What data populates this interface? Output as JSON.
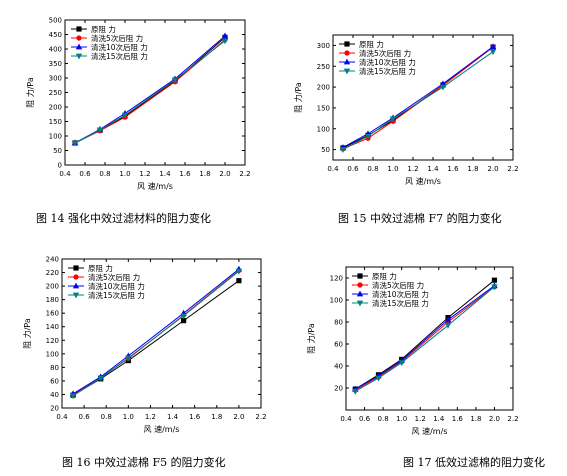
{
  "figures": [
    {
      "caption": "图 14 强化中效过滤材料的阻力变化"
    },
    {
      "caption": "图 15 中效过滤棉 F7 的阻力变化"
    },
    {
      "caption": "图 16 中效过滤棉 F5 的阻力变化"
    },
    {
      "caption": "图 17 低效过滤棉的阻力变化"
    }
  ],
  "chart_data": [
    {
      "type": "line",
      "xlabel": "风 速/m/s",
      "ylabel": "阻 力/Pa",
      "xlim": [
        0.4,
        2.2
      ],
      "ylim": [
        0,
        500
      ],
      "xticks": [
        "0.4",
        "0.6",
        "0.8",
        "1.0",
        "1.2",
        "1.4",
        "1.6",
        "1.8",
        "2.0",
        "2.2"
      ],
      "yticks": [
        "0",
        "50",
        "100",
        "150",
        "200",
        "250",
        "300",
        "350",
        "400",
        "450",
        "500"
      ],
      "legend": "top-left",
      "x": [
        0.5,
        0.75,
        1.0,
        1.5,
        2.0
      ],
      "series": [
        {
          "name": "原阻 力",
          "color": "#000000",
          "marker": "square",
          "values": [
            76,
            120,
            168,
            290,
            440
          ]
        },
        {
          "name": "清洗5次后阻 力",
          "color": "#ff0000",
          "marker": "circle",
          "values": [
            76,
            118,
            165,
            287,
            432
          ]
        },
        {
          "name": "清洗10次后阻 力",
          "color": "#0000ff",
          "marker": "triangle-up",
          "values": [
            76,
            123,
            178,
            297,
            445
          ]
        },
        {
          "name": "清洗15次后阻 力",
          "color": "#008080",
          "marker": "triangle-down",
          "values": [
            75,
            121,
            172,
            294,
            428
          ]
        }
      ]
    },
    {
      "type": "line",
      "xlabel": "风 速/m/s",
      "ylabel": "阻 力/Pa",
      "xlim": [
        0.4,
        2.2
      ],
      "ylim": [
        25,
        325
      ],
      "xticks": [
        "0.4",
        "0.6",
        "0.8",
        "1.0",
        "1.2",
        "1.4",
        "1.6",
        "1.8",
        "2.0",
        "2.2"
      ],
      "yticks": [
        "50",
        "100",
        "150",
        "200",
        "250",
        "300"
      ],
      "legend": "top-left",
      "x": [
        0.5,
        0.75,
        1.0,
        1.5,
        2.0
      ],
      "series": [
        {
          "name": "原阻 力",
          "color": "#000000",
          "marker": "square",
          "values": [
            54,
            84,
            120,
            205,
            296
          ]
        },
        {
          "name": "清洗5次后阻 力",
          "color": "#ff0000",
          "marker": "circle",
          "values": [
            52,
            77,
            118,
            204,
            296
          ]
        },
        {
          "name": "清洗10次后阻 力",
          "color": "#0000ff",
          "marker": "triangle-up",
          "values": [
            55,
            88,
            126,
            208,
            297
          ]
        },
        {
          "name": "清洗15次后阻 力",
          "color": "#008080",
          "marker": "triangle-down",
          "values": [
            50,
            82,
            124,
            200,
            285
          ]
        }
      ]
    },
    {
      "type": "line",
      "xlabel": "风 速/m/s",
      "ylabel": "阻 力/Pa",
      "xlim": [
        0.4,
        2.2
      ],
      "ylim": [
        20,
        240
      ],
      "xticks": [
        "0.4",
        "0.6",
        "0.8",
        "1.0",
        "1.2",
        "1.4",
        "1.6",
        "1.8",
        "2.0",
        "2.2"
      ],
      "yticks": [
        "20",
        "40",
        "60",
        "80",
        "100",
        "120",
        "140",
        "160",
        "180",
        "200",
        "220",
        "240"
      ],
      "legend": "top-left",
      "x": [
        0.5,
        0.75,
        1.0,
        1.5,
        2.0
      ],
      "series": [
        {
          "name": "原阻 力",
          "color": "#000000",
          "marker": "square",
          "values": [
            39,
            63,
            90,
            149,
            208
          ]
        },
        {
          "name": "清洗5次后阻 力",
          "color": "#ff0000",
          "marker": "circle",
          "values": [
            40,
            65,
            93,
            157,
            223
          ]
        },
        {
          "name": "清洗10次后阻 力",
          "color": "#0000ff",
          "marker": "triangle-up",
          "values": [
            41,
            66,
            97,
            160,
            225
          ]
        },
        {
          "name": "清洗15次后阻 力",
          "color": "#008080",
          "marker": "triangle-down",
          "values": [
            38,
            64,
            94,
            156,
            222
          ]
        }
      ]
    },
    {
      "type": "line",
      "xlabel": "风 速/m/s",
      "ylabel": "阻 力/Pa",
      "xlim": [
        0.4,
        2.2
      ],
      "ylim": [
        0,
        130
      ],
      "xticks": [
        "0.4",
        "0.6",
        "0.8",
        "1.0",
        "1.2",
        "1.4",
        "1.6",
        "1.8",
        "2.0",
        "2.2"
      ],
      "yticks": [
        "20",
        "40",
        "60",
        "80",
        "100",
        "120"
      ],
      "legend": "top-left",
      "x": [
        0.5,
        0.75,
        1.0,
        1.5,
        2.0
      ],
      "series": [
        {
          "name": "原阻 力",
          "color": "#000000",
          "marker": "square",
          "values": [
            19,
            32,
            46,
            84,
            118
          ]
        },
        {
          "name": "清洗5次后阻 力",
          "color": "#ff0000",
          "marker": "circle",
          "values": [
            18,
            30,
            44,
            80,
            112
          ]
        },
        {
          "name": "清洗10次后阻 力",
          "color": "#0000ff",
          "marker": "triangle-up",
          "values": [
            19,
            31,
            45,
            82,
            113
          ]
        },
        {
          "name": "清洗15次后阻 力",
          "color": "#008080",
          "marker": "triangle-down",
          "values": [
            17,
            29,
            43,
            77,
            112
          ]
        }
      ]
    }
  ]
}
